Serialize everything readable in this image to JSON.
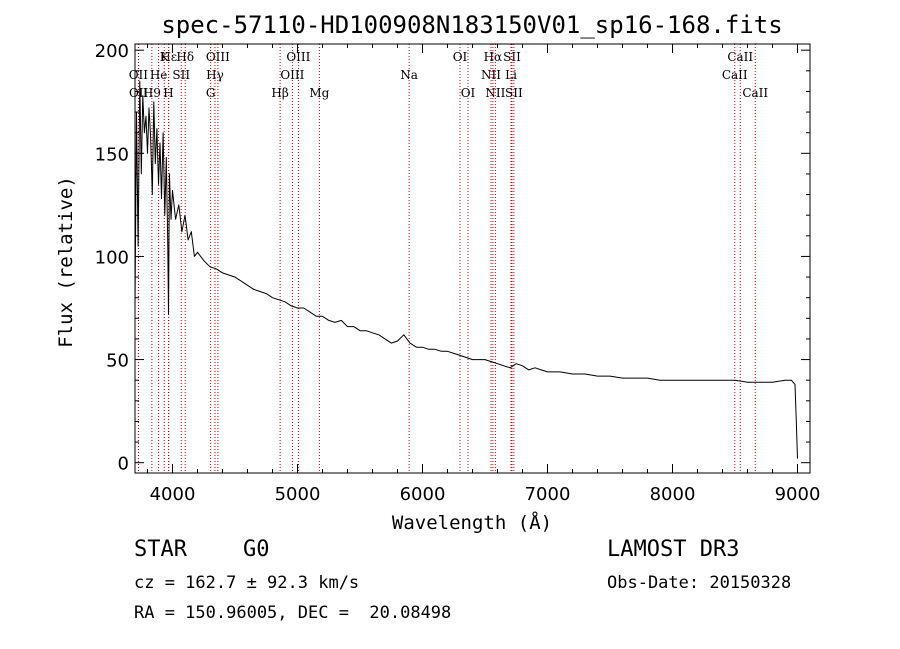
{
  "chart_data": {
    "type": "line",
    "title": "spec-57110-HD100908N183150V01_sp16-168.fits",
    "xlabel": "Wavelength (Å)",
    "ylabel": "Flux (relative)",
    "xlim": [
      3700,
      9100
    ],
    "ylim": [
      -5,
      203
    ],
    "xticks": [
      4000,
      5000,
      6000,
      7000,
      8000,
      9000
    ],
    "yticks": [
      0,
      50,
      100,
      150,
      200
    ],
    "grid": false,
    "series": [
      {
        "name": "flux",
        "x": [
          3700,
          3712,
          3725,
          3738,
          3750,
          3762,
          3775,
          3788,
          3800,
          3812,
          3825,
          3838,
          3850,
          3862,
          3875,
          3888,
          3900,
          3912,
          3925,
          3938,
          3950,
          3962,
          3968,
          3975,
          3988,
          4000,
          4025,
          4050,
          4075,
          4100,
          4125,
          4150,
          4175,
          4200,
          4250,
          4300,
          4350,
          4400,
          4450,
          4500,
          4550,
          4600,
          4650,
          4700,
          4750,
          4800,
          4850,
          4900,
          4950,
          5000,
          5050,
          5100,
          5150,
          5200,
          5250,
          5300,
          5350,
          5400,
          5450,
          5500,
          5550,
          5600,
          5650,
          5700,
          5750,
          5800,
          5850,
          5900,
          5950,
          6000,
          6050,
          6100,
          6150,
          6200,
          6250,
          6300,
          6350,
          6400,
          6450,
          6500,
          6550,
          6600,
          6650,
          6700,
          6750,
          6800,
          6850,
          6900,
          6950,
          7000,
          7100,
          7200,
          7300,
          7400,
          7500,
          7600,
          7700,
          7800,
          7900,
          8000,
          8100,
          8200,
          8300,
          8400,
          8500,
          8600,
          8700,
          8800,
          8900,
          8950,
          8980,
          8990,
          9000
        ],
        "values": [
          75,
          170,
          105,
          185,
          140,
          178,
          160,
          168,
          150,
          172,
          158,
          130,
          175,
          145,
          162,
          135,
          155,
          128,
          160,
          120,
          148,
          105,
          72,
          140,
          118,
          132,
          118,
          125,
          112,
          120,
          108,
          112,
          100,
          102,
          98,
          95,
          94,
          92,
          91,
          90,
          88,
          86,
          84,
          83,
          82,
          80,
          79,
          78,
          76,
          75,
          75,
          73,
          71,
          71,
          69,
          68,
          69,
          66,
          66,
          64,
          64,
          63,
          62,
          60,
          58,
          59,
          62,
          58,
          56,
          56,
          55,
          55,
          54,
          54,
          53,
          52,
          51,
          50,
          50,
          50,
          49,
          48,
          47,
          46,
          48,
          47,
          45,
          46,
          45,
          44,
          44,
          43,
          43,
          42,
          42,
          41,
          41,
          41,
          40,
          40,
          40,
          40,
          40,
          40,
          40,
          39,
          39,
          39,
          40,
          40,
          38,
          20,
          2
        ]
      }
    ],
    "lines": [
      {
        "name": "Hε",
        "wave": 3970,
        "row": 0
      },
      {
        "name": "OII",
        "wave": 3727,
        "row": 1
      },
      {
        "name": "OII",
        "wave": 3729,
        "row": 2
      },
      {
        "name": "H9",
        "wave": 3835,
        "row": 2
      },
      {
        "name": "K",
        "wave": 3934,
        "row": 0
      },
      {
        "name": "He",
        "wave": 3889,
        "row": 1
      },
      {
        "name": "H",
        "wave": 3968,
        "row": 2
      },
      {
        "name": "Hδ",
        "wave": 4102,
        "row": 0
      },
      {
        "name": "SII",
        "wave": 4070,
        "row": 1
      },
      {
        "name": "OIII",
        "wave": 4363,
        "row": 0
      },
      {
        "name": "Hγ",
        "wave": 4340,
        "row": 1
      },
      {
        "name": "G",
        "wave": 4305,
        "row": 2
      },
      {
        "name": "Hβ",
        "wave": 4861,
        "row": 2
      },
      {
        "name": "OIII",
        "wave": 5007,
        "row": 0
      },
      {
        "name": "OIII",
        "wave": 4959,
        "row": 1
      },
      {
        "name": "Mg",
        "wave": 5175,
        "row": 2
      },
      {
        "name": "Na",
        "wave": 5893,
        "row": 1
      },
      {
        "name": "OI",
        "wave": 6300,
        "row": 0
      },
      {
        "name": "OI",
        "wave": 6364,
        "row": 2
      },
      {
        "name": "Hα",
        "wave": 6563,
        "row": 0
      },
      {
        "name": "NII",
        "wave": 6548,
        "row": 1
      },
      {
        "name": "NII",
        "wave": 6583,
        "row": 2
      },
      {
        "name": "SII",
        "wave": 6716,
        "row": 0
      },
      {
        "name": "Li",
        "wave": 6708,
        "row": 1
      },
      {
        "name": "SII",
        "wave": 6731,
        "row": 2
      },
      {
        "name": "CaII",
        "wave": 8542,
        "row": 0
      },
      {
        "name": "CaII",
        "wave": 8498,
        "row": 1
      },
      {
        "name": "CaII",
        "wave": 8662,
        "row": 2
      }
    ]
  },
  "info": {
    "object_class": "STAR",
    "object_type": "G0",
    "survey": "LAMOST DR3",
    "cz": "cz = 162.7 ± 92.3 km/s",
    "obs_date": "Obs-Date: 20150328",
    "radec": "RA = 150.96005, DEC =  20.08498"
  }
}
